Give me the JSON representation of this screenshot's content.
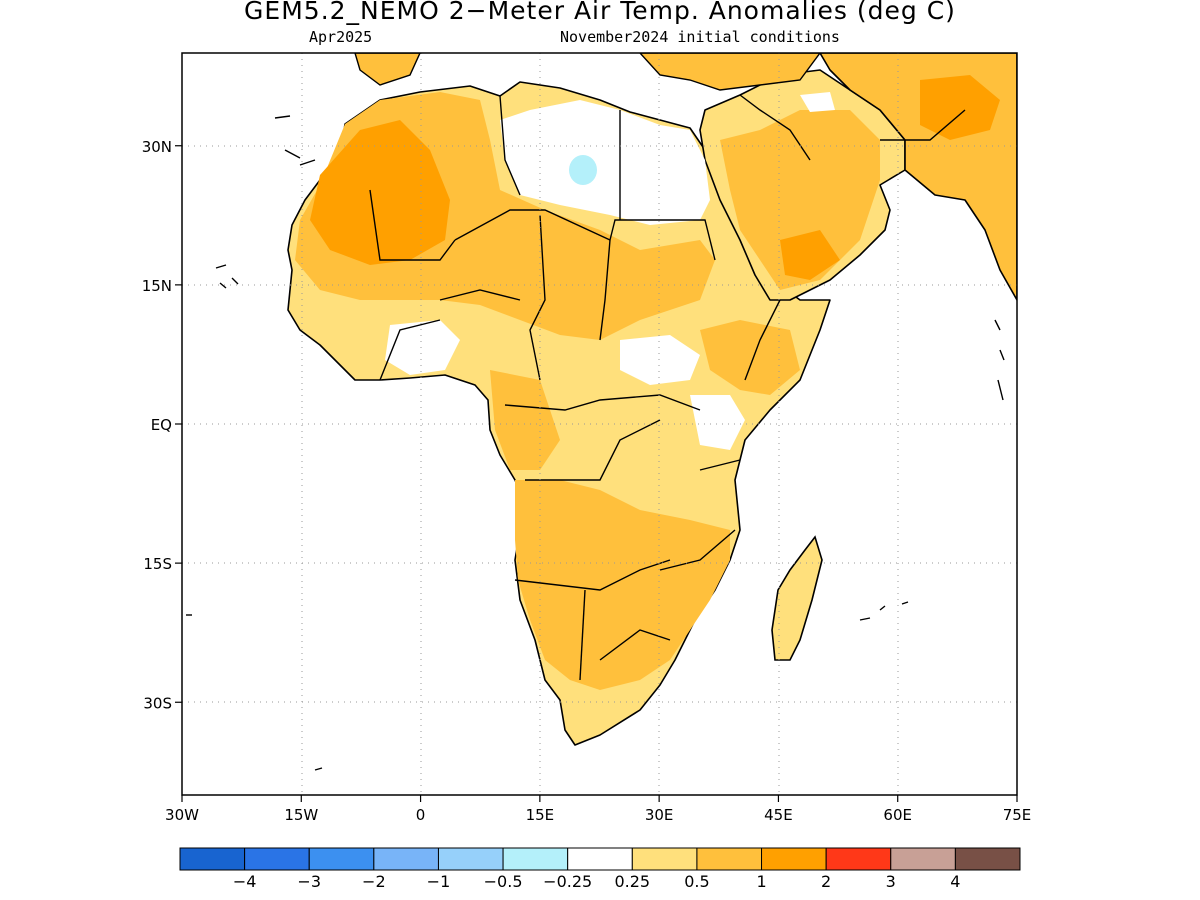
{
  "title": "GEM5.2_NEMO 2−Meter Air Temp. Anomalies (deg C)",
  "subtitle_left": "Apr2025",
  "subtitle_right": "November2024 initial conditions",
  "lat_labels": [
    {
      "deg": 30,
      "label": "30N"
    },
    {
      "deg": 15,
      "label": "15N"
    },
    {
      "deg": 0,
      "label": "EQ"
    },
    {
      "deg": -15,
      "label": "15S"
    },
    {
      "deg": -30,
      "label": "30S"
    }
  ],
  "lon_labels": [
    {
      "deg": -30,
      "label": "30W"
    },
    {
      "deg": -15,
      "label": "15W"
    },
    {
      "deg": 0,
      "label": "0"
    },
    {
      "deg": 15,
      "label": "15E"
    },
    {
      "deg": 30,
      "label": "30E"
    },
    {
      "deg": 45,
      "label": "45E"
    },
    {
      "deg": 60,
      "label": "60E"
    },
    {
      "deg": 75,
      "label": "75E"
    }
  ],
  "lon_range": [
    -30,
    75
  ],
  "lat_range": [
    -40,
    40
  ],
  "colorbar": {
    "colors": [
      "#1864d0",
      "#2a74e6",
      "#3c90f0",
      "#78b4f8",
      "#96d0fa",
      "#b4f0fa",
      "#ffffff",
      "#ffe07c",
      "#ffc03c",
      "#ffa000",
      "#ff3818",
      "#c8a096",
      "#785046"
    ],
    "labels": [
      "−4",
      "−3",
      "−2",
      "−1",
      "−0.5",
      "−0.25",
      "0.25",
      "0.5",
      "1",
      "2",
      "3",
      "4"
    ]
  },
  "legend_colors": {
    "light_orange": "#ffe07c",
    "orange": "#ffc03c",
    "dark_orange": "#ffa000",
    "light_blue": "#b4f0fa",
    "white": "#ffffff"
  }
}
